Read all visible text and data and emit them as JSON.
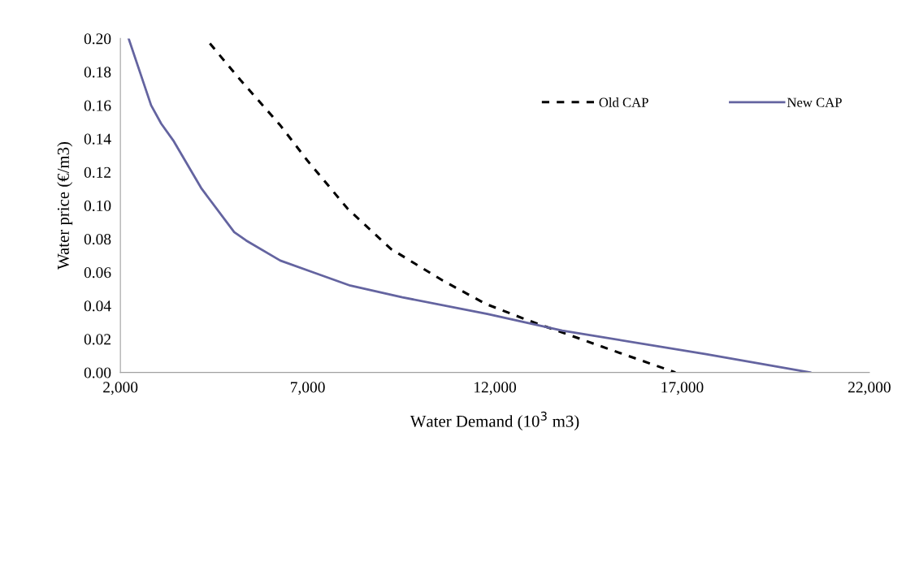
{
  "chart_data": {
    "type": "line",
    "xlabel": "Water Demand (10$^{3}$ m3)",
    "ylabel": "Water price (€/m3)",
    "xlim": [
      2000,
      22000
    ],
    "xticks": [
      {
        "value": 2000,
        "label": "2,000"
      },
      {
        "value": 7000,
        "label": "7,000"
      },
      {
        "value": 12000,
        "label": "12,000"
      },
      {
        "value": 17000,
        "label": "17,000"
      },
      {
        "value": 22000,
        "label": "22,000"
      }
    ],
    "ylim": [
      0,
      0.2
    ],
    "yticks": [
      {
        "value": 0,
        "label": "0.00"
      },
      {
        "value": 0.02,
        "label": "0.02"
      },
      {
        "value": 0.04,
        "label": "0.04"
      },
      {
        "value": 0.06,
        "label": "0.06"
      },
      {
        "value": 0.08,
        "label": "0.08"
      },
      {
        "value": 0.1,
        "label": "0.10"
      },
      {
        "value": 0.12,
        "label": "0.12"
      },
      {
        "value": 0.14,
        "label": "0.14"
      },
      {
        "value": 0.16,
        "label": "0.16"
      },
      {
        "value": 0.18,
        "label": "0.18"
      },
      {
        "value": 0.2,
        "label": "0.20"
      }
    ],
    "grid": false,
    "legend": "top right",
    "marker": "none",
    "series": [
      {
        "name": "Old CAP",
        "color": "#000000",
        "line_style": "dashed",
        "x": [
          4390,
          5210,
          6270,
          6990,
          8070,
          9220,
          10610,
          11760,
          12910,
          15170,
          16820
        ],
        "values": [
          0.197,
          0.175,
          0.148,
          0.127,
          0.098,
          0.074,
          0.055,
          0.041,
          0.031,
          0.013,
          0.0
        ]
      },
      {
        "name": "New CAP",
        "color": "#6464a0",
        "line_style": "solid",
        "x": [
          2220,
          2820,
          3090,
          3410,
          4170,
          5040,
          5360,
          6270,
          7140,
          8140,
          9530,
          11800,
          13800,
          17640,
          20420
        ],
        "values": [
          0.2,
          0.16,
          0.149,
          0.139,
          0.11,
          0.084,
          0.079,
          0.067,
          0.06,
          0.052,
          0.045,
          0.035,
          0.025,
          0.011,
          0.0
        ]
      }
    ]
  }
}
